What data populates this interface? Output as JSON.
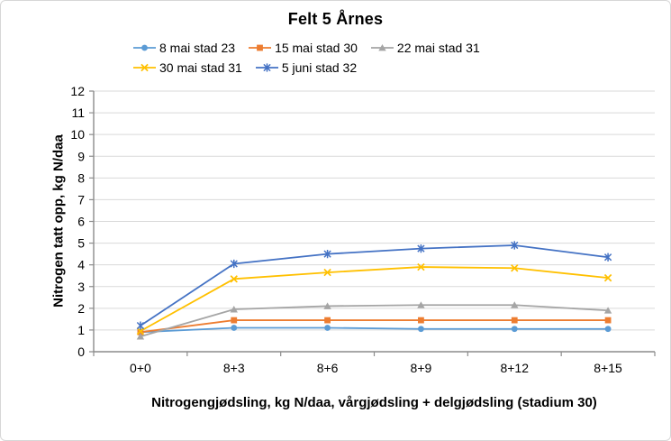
{
  "chart_data": {
    "type": "line",
    "title": "Felt 5 Årnes",
    "xlabel": "Nitrogengjødsling, kg N/daa, vårgjødsling + delgjødsling (stadium 30)",
    "ylabel": "Nitrogen tatt opp, kg N/daa",
    "categories": [
      "0+0",
      "8+3",
      "8+6",
      "8+9",
      "8+12",
      "8+15"
    ],
    "series": [
      {
        "name": "8 mai stad 23",
        "color": "#5B9BD5",
        "marker": "circle",
        "values": [
          0.9,
          1.1,
          1.1,
          1.05,
          1.05,
          1.05
        ]
      },
      {
        "name": "15 mai stad 30",
        "color": "#ED7D31",
        "marker": "square",
        "values": [
          0.9,
          1.45,
          1.45,
          1.45,
          1.45,
          1.45
        ]
      },
      {
        "name": "22 mai stad 31",
        "color": "#A5A5A5",
        "marker": "triangle",
        "values": [
          0.7,
          1.95,
          2.1,
          2.15,
          2.15,
          1.9
        ]
      },
      {
        "name": "30 mai stad 31",
        "color": "#FFC000",
        "marker": "x",
        "values": [
          0.95,
          3.35,
          3.65,
          3.9,
          3.85,
          3.4
        ]
      },
      {
        "name": "5 juni stad 32",
        "color": "#4472C4",
        "marker": "star",
        "values": [
          1.2,
          4.05,
          4.5,
          4.75,
          4.9,
          4.35
        ]
      }
    ],
    "ylim": [
      0,
      12
    ],
    "ytick": 1,
    "grid": true,
    "legend_position": "top",
    "grid_color": "#D9D9D9",
    "axis_color": "#8C8C8C"
  }
}
